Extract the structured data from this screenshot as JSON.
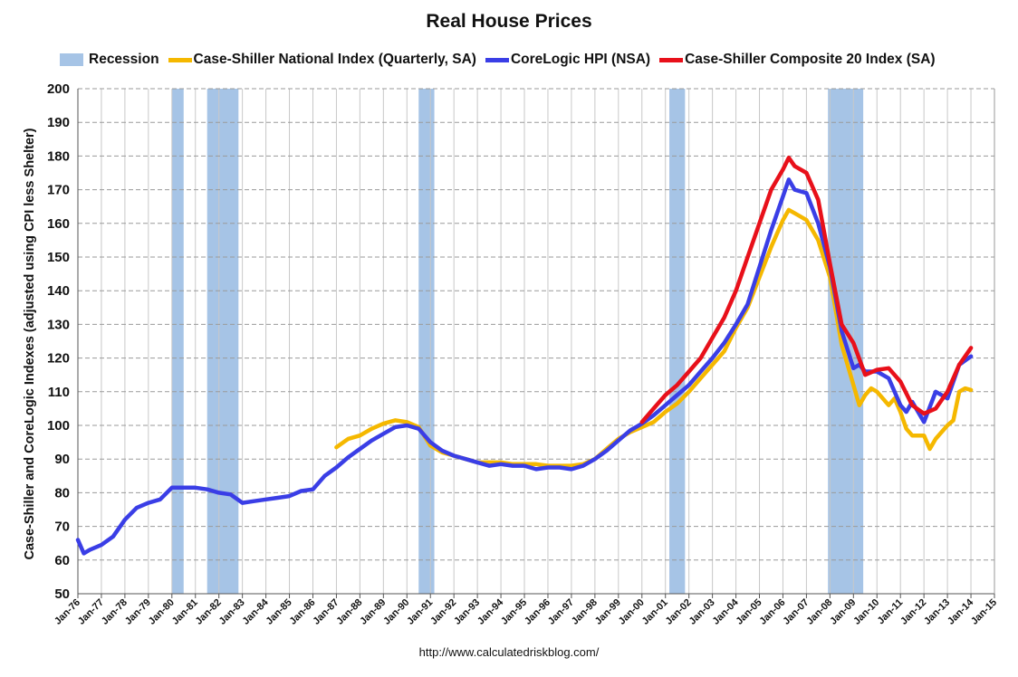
{
  "chart_data": {
    "type": "line",
    "title": "Real House Prices",
    "ylabel": "Case-Shiller and CoreLogic Indexes (adjusted using CPI less Shelter)",
    "xlabel": "",
    "source": "http://www.calculatedriskblog.com/",
    "ylim": [
      50,
      200
    ],
    "xlim": [
      1976,
      2015
    ],
    "grid": true,
    "legend_position": "top",
    "y_ticks": [
      50,
      60,
      70,
      80,
      90,
      100,
      110,
      120,
      130,
      140,
      150,
      160,
      170,
      180,
      190,
      200
    ],
    "x_ticks": [
      "Jan-76",
      "Jan-77",
      "Jan-78",
      "Jan-79",
      "Jan-80",
      "Jan-81",
      "Jan-82",
      "Jan-83",
      "Jan-84",
      "Jan-85",
      "Jan-86",
      "Jan-87",
      "Jan-88",
      "Jan-89",
      "Jan-90",
      "Jan-91",
      "Jan-92",
      "Jan-93",
      "Jan-94",
      "Jan-95",
      "Jan-96",
      "Jan-97",
      "Jan-98",
      "Jan-99",
      "Jan-00",
      "Jan-01",
      "Jan-02",
      "Jan-03",
      "Jan-04",
      "Jan-05",
      "Jan-06",
      "Jan-07",
      "Jan-08",
      "Jan-09",
      "Jan-10",
      "Jan-11",
      "Jan-12",
      "Jan-13",
      "Jan-14",
      "Jan-15"
    ],
    "recessions": [
      {
        "start": "Jan-80",
        "end": "Jul-80"
      },
      {
        "start": "Jul-81",
        "end": "Nov-82"
      },
      {
        "start": "Jul-90",
        "end": "Mar-91"
      },
      {
        "start": "Mar-01",
        "end": "Nov-01"
      },
      {
        "start": "Dec-07",
        "end": "Jun-09"
      }
    ],
    "recession_label": "Recession",
    "recession_color": "#a6c4e6",
    "series": [
      {
        "name": "Case-Shiller National Index (Quarterly, SA)",
        "color": "#f5b800",
        "x": [
          1987.0,
          1987.5,
          1988.0,
          1988.5,
          1989.0,
          1989.5,
          1990.0,
          1990.5,
          1991.0,
          1991.5,
          1992.0,
          1992.5,
          1993.0,
          1993.5,
          1994.0,
          1994.5,
          1995.0,
          1995.5,
          1996.0,
          1996.5,
          1997.0,
          1997.5,
          1998.0,
          1998.5,
          1999.0,
          1999.5,
          2000.0,
          2000.5,
          2001.0,
          2001.5,
          2002.0,
          2002.5,
          2003.0,
          2003.5,
          2004.0,
          2004.5,
          2005.0,
          2005.5,
          2006.0,
          2006.25,
          2006.5,
          2007.0,
          2007.5,
          2008.0,
          2008.5,
          2009.0,
          2009.25,
          2009.5,
          2009.75,
          2010.0,
          2010.5,
          2010.75,
          2011.0,
          2011.25,
          2011.5,
          2012.0,
          2012.25,
          2012.5,
          2013.0,
          2013.25,
          2013.5,
          2013.75,
          2014.0
        ],
        "values": [
          93.5,
          96,
          97,
          99,
          100.5,
          101.5,
          101,
          99.5,
          94,
          92,
          91,
          90,
          89,
          89,
          89,
          88.5,
          88.5,
          88.5,
          88,
          88,
          88,
          88.5,
          90,
          93,
          96,
          98,
          99.5,
          101,
          104,
          106.5,
          110,
          114,
          118,
          122,
          129,
          135,
          144,
          153,
          161,
          164,
          163,
          161,
          155,
          144,
          124,
          112,
          106,
          109,
          111,
          110,
          106,
          108,
          104,
          99,
          97,
          97,
          93,
          96,
          100,
          101.5,
          110,
          111,
          110.5
        ]
      },
      {
        "name": "CoreLogic HPI (NSA)",
        "color": "#3a3ee6",
        "x": [
          1976.0,
          1976.25,
          1976.5,
          1977.0,
          1977.5,
          1978.0,
          1978.5,
          1979.0,
          1979.5,
          1980.0,
          1980.5,
          1981.0,
          1981.5,
          1982.0,
          1982.5,
          1983.0,
          1983.5,
          1984.0,
          1984.5,
          1985.0,
          1985.5,
          1986.0,
          1986.5,
          1987.0,
          1987.5,
          1988.0,
          1988.5,
          1989.0,
          1989.5,
          1990.0,
          1990.5,
          1991.0,
          1991.5,
          1992.0,
          1992.5,
          1993.0,
          1993.5,
          1994.0,
          1994.5,
          1995.0,
          1995.5,
          1996.0,
          1996.5,
          1997.0,
          1997.5,
          1998.0,
          1998.5,
          1999.0,
          1999.5,
          2000.0,
          2000.5,
          2001.0,
          2001.5,
          2002.0,
          2002.5,
          2003.0,
          2003.5,
          2004.0,
          2004.5,
          2005.0,
          2005.5,
          2006.0,
          2006.25,
          2006.5,
          2007.0,
          2007.5,
          2008.0,
          2008.5,
          2009.0,
          2009.25,
          2009.5,
          2010.0,
          2010.5,
          2011.0,
          2011.25,
          2011.5,
          2012.0,
          2012.5,
          2013.0,
          2013.5,
          2014.0
        ],
        "values": [
          66,
          62,
          63,
          64.5,
          67,
          72,
          75.5,
          77,
          78,
          81.5,
          81.5,
          81.5,
          81,
          80,
          79.5,
          77,
          77.5,
          78,
          78.5,
          79,
          80.5,
          81,
          85,
          87.5,
          90.5,
          93,
          95.5,
          97.5,
          99.5,
          100,
          99,
          95,
          92.5,
          91,
          90,
          89,
          88,
          88.5,
          88,
          88,
          87,
          87.5,
          87.5,
          87,
          88,
          90,
          92.5,
          95.5,
          98.5,
          100.5,
          103,
          106,
          109,
          112,
          116,
          120,
          124.5,
          130,
          136,
          147,
          158,
          168,
          173,
          170,
          169,
          160,
          147,
          128,
          117,
          118,
          116,
          116,
          114,
          106,
          104,
          107,
          101,
          110,
          108,
          118,
          120.5
        ]
      },
      {
        "name": "Case-Shiller Composite 20 Index (SA)",
        "color": "#e8101a",
        "x": [
          2000.0,
          2000.5,
          2001.0,
          2001.5,
          2002.0,
          2002.5,
          2003.0,
          2003.5,
          2004.0,
          2004.5,
          2005.0,
          2005.5,
          2006.0,
          2006.25,
          2006.5,
          2007.0,
          2007.5,
          2008.0,
          2008.5,
          2009.0,
          2009.5,
          2010.0,
          2010.5,
          2011.0,
          2011.5,
          2012.0,
          2012.5,
          2013.0,
          2013.5,
          2014.0
        ],
        "values": [
          101,
          105,
          109,
          112,
          116,
          120,
          126,
          132,
          140,
          150,
          160,
          170,
          176,
          179.5,
          177,
          175,
          167,
          148,
          130,
          124.5,
          115,
          116.5,
          117,
          113,
          106,
          103.5,
          105,
          110,
          118,
          123
        ]
      }
    ]
  }
}
